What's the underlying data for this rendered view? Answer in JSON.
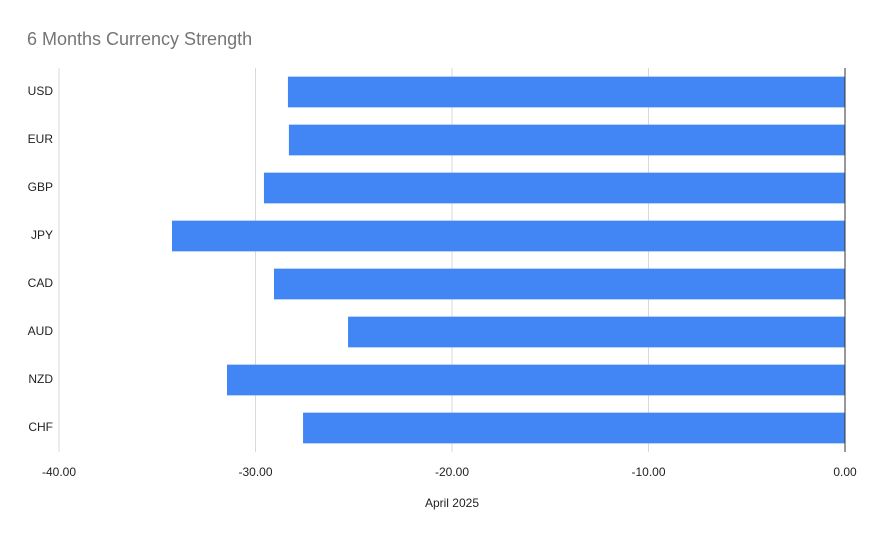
{
  "chart_data": {
    "type": "bar",
    "orientation": "horizontal",
    "title": "6 Months Currency Strength",
    "x_label": "April 2025",
    "categories": [
      "USD",
      "EUR",
      "GBP",
      "JPY",
      "CAD",
      "AUD",
      "NZD",
      "CHF"
    ],
    "values": [
      -28.35,
      -28.3,
      -29.57,
      -34.25,
      -29.06,
      -25.29,
      -31.45,
      -27.58
    ],
    "color": "#4285f4",
    "xlim": [
      -40,
      0
    ],
    "xticks": [
      {
        "value": -40,
        "label": "-40.00"
      },
      {
        "value": -30,
        "label": "-30.00"
      },
      {
        "value": -20,
        "label": "-20.00"
      },
      {
        "value": -10,
        "label": "-10.00"
      },
      {
        "value": 0,
        "label": "0.00"
      }
    ],
    "grid": true
  }
}
